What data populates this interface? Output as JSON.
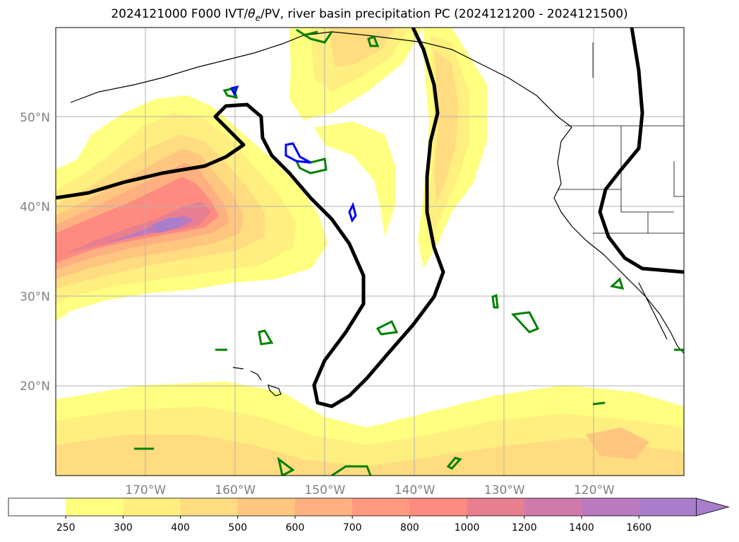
{
  "title": {
    "run": "2024121000",
    "forecast_hour": "F000",
    "fields_prefix": "IVT/",
    "theta": "θ",
    "theta_sub": "e",
    "fields_suffix": "/PV, river basin precipitation PC",
    "period": "(2024121200 - 2024121500)"
  },
  "map": {
    "lat_labels": [
      "50°N",
      "40°N",
      "30°N",
      "20°N"
    ],
    "lat_values": [
      50,
      40,
      30,
      20
    ],
    "lon_labels": [
      "170°W",
      "160°W",
      "150°W",
      "140°W",
      "130°W",
      "120°W"
    ],
    "lon_values": [
      -170,
      -160,
      -150,
      -140,
      -130,
      -120
    ],
    "extent": {
      "lon_min": -180,
      "lon_max": -110,
      "lat_min": 10,
      "lat_max": 60
    },
    "gridlines": true
  },
  "colorbar": {
    "levels": [
      "250",
      "300",
      "400",
      "500",
      "600",
      "700",
      "800",
      "1000",
      "1200",
      "1400",
      "1600"
    ],
    "colors": [
      "#ffffff",
      "#ffff80",
      "#ffef80",
      "#ffdc80",
      "#ffc680",
      "#ffb080",
      "#ff9a80",
      "#ff8a80",
      "#e77f90",
      "#d07aab",
      "#bb7ac0",
      "#a87ecb"
    ],
    "extend": "max"
  },
  "legend_colors": {
    "ivt_contour": "#000000",
    "theta_e_contour": "#008000",
    "pv_contour": "#0000ff"
  }
}
